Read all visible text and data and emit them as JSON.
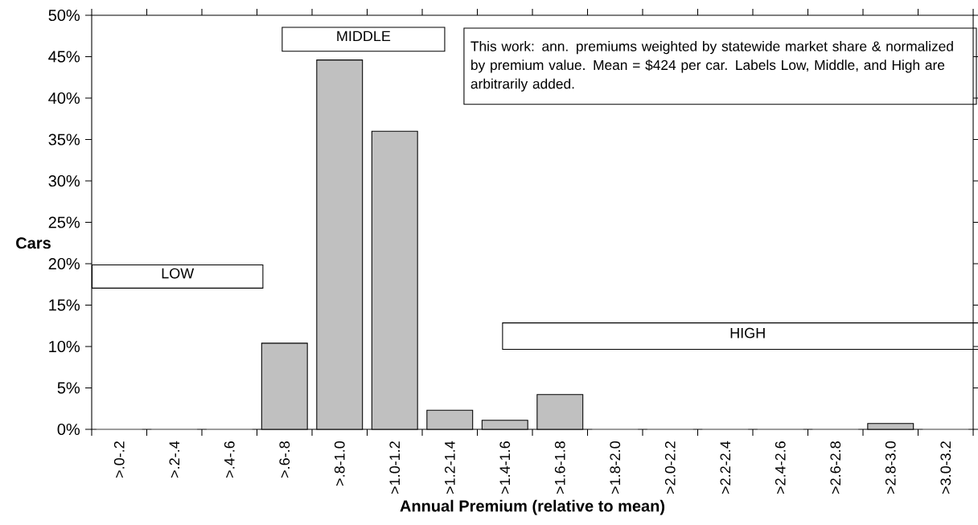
{
  "chart_data": {
    "type": "bar",
    "xlabel": "Annual Premium (relative to mean)",
    "ylabel": "Cars",
    "categories": [
      ">.0-.2",
      ">.2-.4",
      ">.4-.6",
      ">.6-.8",
      ">.8-1.0",
      ">1.0-1.2",
      ">1.2-1.4",
      ">1.4-1.6",
      ">1.6-1.8",
      ">1.8-2.0",
      ">2.0-2.2",
      ">2.2-2.4",
      ">2.4-2.6",
      ">2.6-2.8",
      ">2.8-3.0",
      ">3.0-3.2"
    ],
    "values": [
      0,
      0,
      0,
      10.4,
      44.6,
      36.0,
      2.3,
      1.1,
      4.2,
      0,
      0,
      0,
      0,
      0,
      0.7,
      0
    ],
    "color": "#c0c0c0",
    "ylim": [
      0,
      50
    ],
    "yticks": [
      {
        "value": 0,
        "label": "0%"
      },
      {
        "value": 5,
        "label": "5%"
      },
      {
        "value": 10,
        "label": "10%"
      },
      {
        "value": 15,
        "label": "15%"
      },
      {
        "value": 20,
        "label": "20%"
      },
      {
        "value": 25,
        "label": "25%"
      },
      {
        "value": 30,
        "label": "30%"
      },
      {
        "value": 35,
        "label": "35%"
      },
      {
        "value": 40,
        "label": "40%"
      },
      {
        "value": 45,
        "label": "45%"
      },
      {
        "value": 50,
        "label": "50%"
      }
    ],
    "annotations": [
      "LOW",
      "MIDDLE",
      "HIGH",
      "This work: ann. premiums weighted by statewide market share & normalized by premium value. Mean = $424 per car. Labels Low, Middle, and High are arbitrarily added."
    ]
  }
}
